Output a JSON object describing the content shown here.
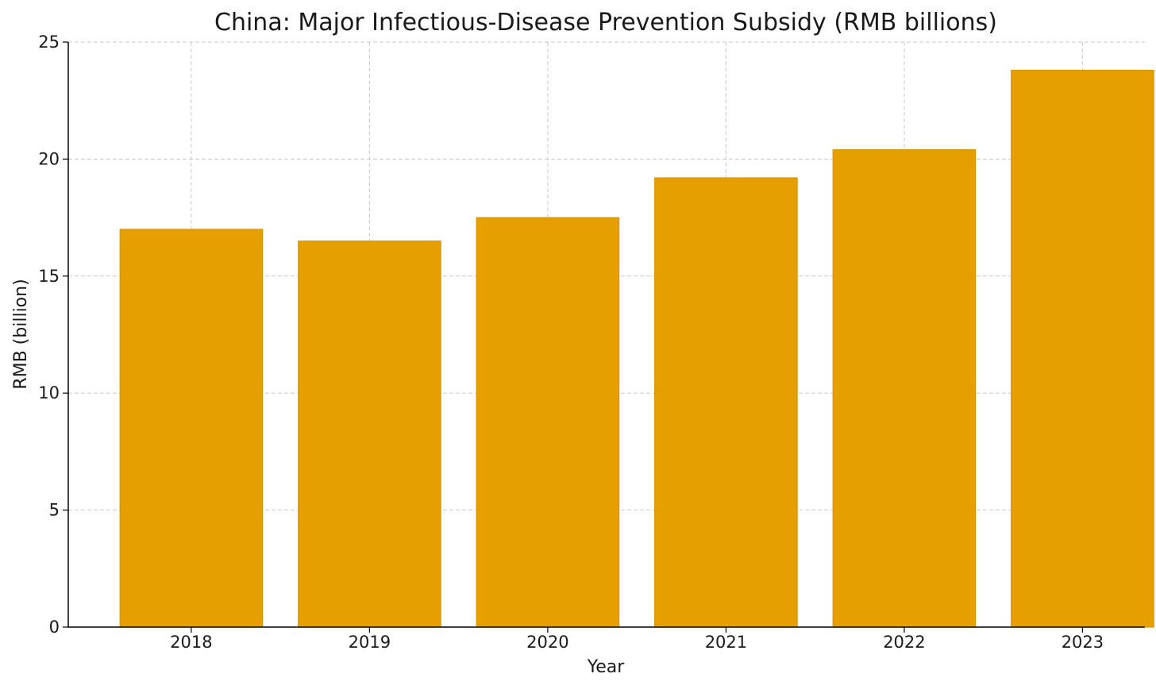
{
  "chart_data": {
    "type": "bar",
    "title": "China: Major Infectious-Disease Prevention Subsidy (RMB billions)",
    "xlabel": "Year",
    "ylabel": "RMB (billion)",
    "categories": [
      "2018",
      "2019",
      "2020",
      "2021",
      "2022",
      "2023"
    ],
    "values": [
      17.0,
      16.5,
      17.5,
      19.2,
      20.4,
      23.8
    ],
    "ylim": [
      0,
      25
    ],
    "yticks": [
      0,
      5,
      10,
      15,
      20,
      25
    ],
    "grid": true,
    "bar_color": "#E5A000"
  }
}
